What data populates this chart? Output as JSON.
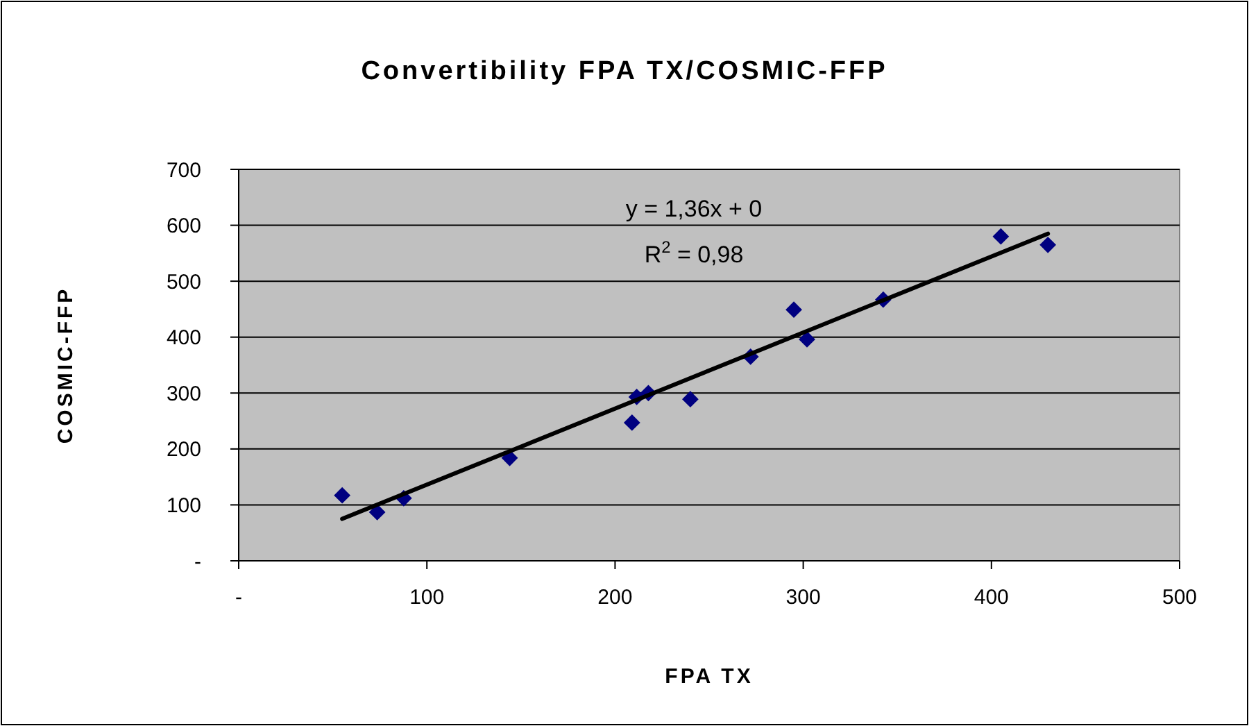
{
  "chart_data": {
    "type": "scatter",
    "title": "Convertibility FPA TX/COSMIC-FFP",
    "xlabel": "FPA TX",
    "ylabel": "COSMIC-FFP",
    "xlim": [
      0,
      500
    ],
    "xticks": [
      {
        "value": 0,
        "label": "-"
      },
      100,
      200,
      300,
      400,
      500
    ],
    "ylim": [
      0,
      700
    ],
    "yticks": [
      {
        "value": 0,
        "label": "-"
      },
      100,
      200,
      300,
      400,
      500,
      600,
      700
    ],
    "grid": "y",
    "annotations": [
      "y = 1,36x + 0",
      "R$^{2}$ = 0,98"
    ],
    "series": [
      {
        "color": "#000080",
        "marker": "diamond",
        "x": [
          55,
          73.6,
          87.7,
          144,
          209,
          211.5,
          217.7,
          240,
          272,
          295,
          302,
          342.5,
          405,
          430
        ],
        "values": [
          117,
          87,
          112,
          184,
          247,
          293,
          300,
          289,
          365,
          449,
          396,
          467,
          580,
          565
        ]
      },
      {
        "type": "line",
        "color": "#000000",
        "marker": "none",
        "line_style": "solid",
        "x": [
          55,
          430
        ],
        "values": [
          75,
          585
        ]
      }
    ]
  }
}
